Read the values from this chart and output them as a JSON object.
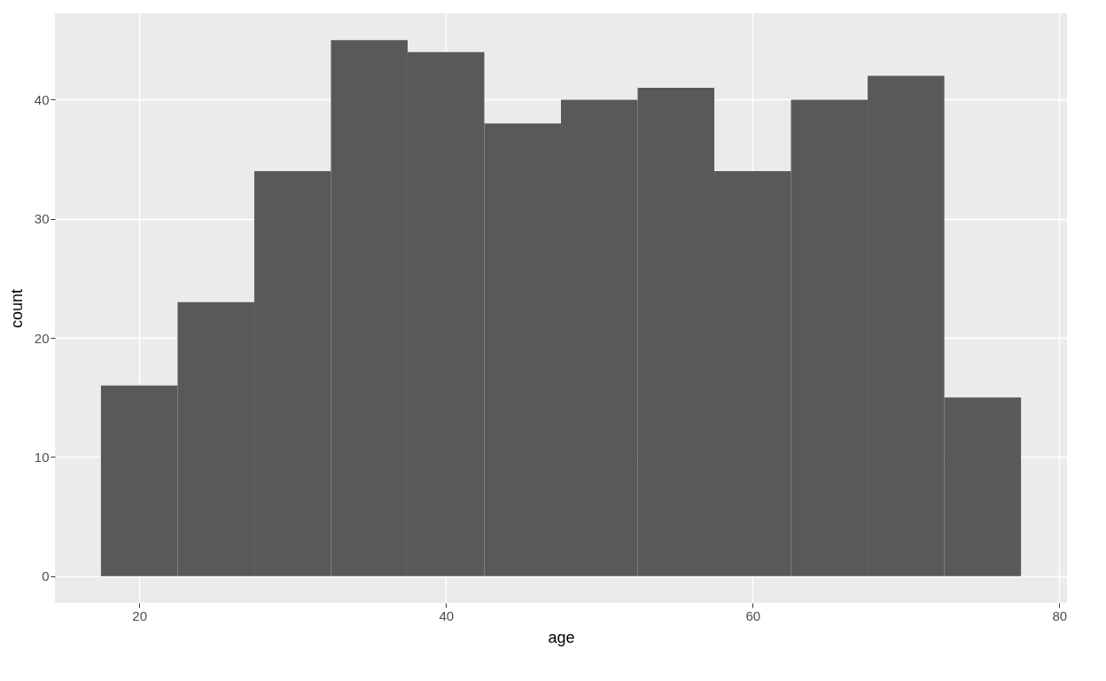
{
  "chart_data": {
    "type": "histogram",
    "xlabel": "age",
    "ylabel": "count",
    "bins": [
      17.5,
      22.5,
      27.5,
      32.5,
      37.5,
      42.5,
      47.5,
      52.5,
      57.5,
      62.5,
      67.5,
      72.5,
      77.5
    ],
    "values": [
      16,
      23,
      34,
      45,
      44,
      38,
      40,
      41,
      34,
      40,
      42,
      15
    ],
    "color": "#595959",
    "xlim": [
      14.5,
      80.5
    ],
    "xticks": [
      20,
      40,
      60,
      80
    ],
    "ylim": [
      -2.25,
      47.25
    ],
    "yticks": [
      0,
      10,
      20,
      30,
      40
    ],
    "grid": true
  }
}
